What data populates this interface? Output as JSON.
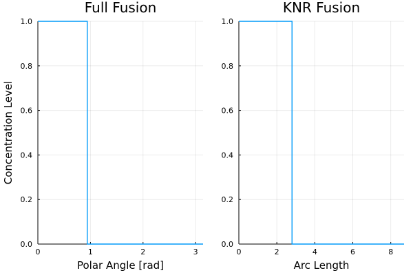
{
  "chart_data": [
    {
      "type": "line",
      "title": "Full Fusion",
      "xlabel": "Polar Angle [rad]",
      "ylabel": "Concentration Level",
      "xlim": [
        0,
        3.1416
      ],
      "ylim": [
        0,
        1.0
      ],
      "xticks": [
        0,
        1,
        2,
        3
      ],
      "yticks": [
        0.0,
        0.2,
        0.4,
        0.6,
        0.8,
        1.0
      ],
      "grid": true,
      "legend": "none",
      "series": [
        {
          "color": "#009af9",
          "x": [
            0,
            0.94,
            0.94,
            3.1416
          ],
          "y": [
            1,
            1,
            0,
            0
          ]
        }
      ]
    },
    {
      "type": "line",
      "title": "KNR Fusion",
      "xlabel": "Arc Length",
      "ylabel": "",
      "xlim": [
        0,
        8.7
      ],
      "ylim": [
        0,
        1.0
      ],
      "xticks": [
        0,
        2,
        4,
        6,
        8
      ],
      "yticks": [
        0.0,
        0.2,
        0.4,
        0.6,
        0.8,
        1.0
      ],
      "grid": true,
      "legend": "none",
      "series": [
        {
          "color": "#009af9",
          "x": [
            0,
            2.8,
            2.8,
            8.7
          ],
          "y": [
            1,
            1,
            0,
            0
          ]
        }
      ]
    }
  ]
}
